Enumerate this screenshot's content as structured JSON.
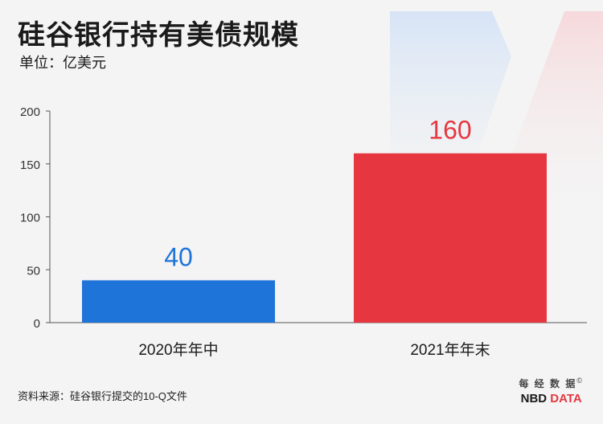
{
  "header": {
    "title": "硅谷银行持有美债规模",
    "unit": "单位：亿美元"
  },
  "footer": {
    "source": "资料来源：硅谷银行提交的10-Q文件",
    "brand_cn": "每 经 数 据",
    "brand_mark": "©",
    "brand_en_1": "NBD",
    "brand_en_2": " DATA"
  },
  "colors": {
    "bar_2020": "#1f74d9",
    "bar_2021": "#e63740",
    "axis": "#555555"
  },
  "chart_data": {
    "type": "bar",
    "title": "硅谷银行持有美债规模",
    "ylabel": "单位：亿美元",
    "xlabel": "",
    "categories": [
      "2020年年中",
      "2021年年末"
    ],
    "values": [
      40,
      160
    ],
    "ylim": [
      0,
      200
    ],
    "yticks": [
      0,
      50,
      100,
      150,
      200
    ],
    "grid": false,
    "legend": "none"
  }
}
